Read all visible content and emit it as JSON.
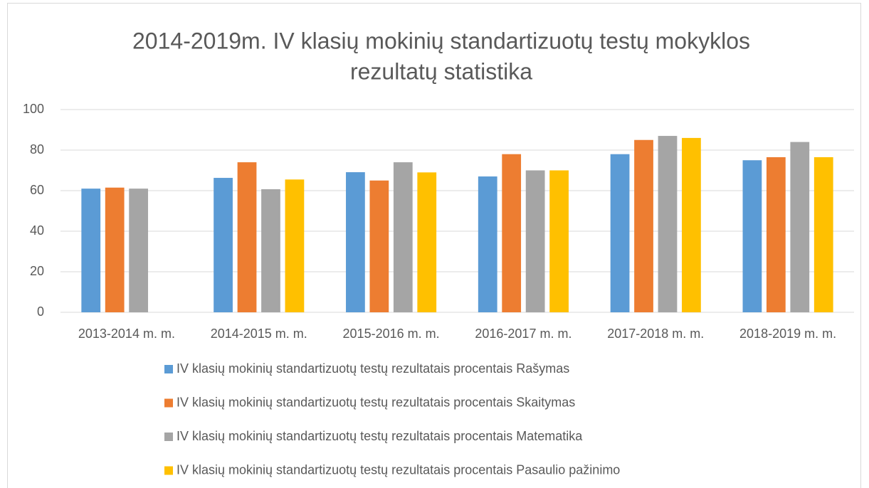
{
  "chart_data": {
    "type": "bar",
    "title": [
      "2014-2019m. IV klasių mokinių standartizuotų testų mokyklos",
      "rezultatų statistika"
    ],
    "categories": [
      "2013-2014 m. m.",
      "2014-2015 m. m.",
      "2015-2016 m. m.",
      "2016-2017 m. m.",
      "2017-2018 m. m.",
      "2018-2019 m. m."
    ],
    "series": [
      {
        "name": "IV klasių mokinių standartizuotų testų rezultatais procentais Rašymas",
        "color": "#5b9bd5",
        "values": [
          61,
          66.3,
          69.1,
          67,
          78,
          75
        ]
      },
      {
        "name": "IV klasių mokinių standartizuotų testų rezultatais procentais Skaitymas",
        "color": "#ed7d31",
        "values": [
          61.5,
          74,
          65,
          78,
          85,
          76.5
        ]
      },
      {
        "name": "IV klasių mokinių standartizuotų testų rezultatais procentais Matematika",
        "color": "#a5a5a5",
        "values": [
          61,
          60.7,
          74,
          70,
          87,
          84
        ]
      },
      {
        "name": "IV klasių mokinių standartizuotų testų rezultatais procentais Pasaulio pažinimo",
        "color": "#ffc000",
        "values": [
          null,
          65.5,
          69,
          70,
          86,
          76.5
        ]
      }
    ],
    "ylim": [
      0,
      100
    ],
    "yticks": [
      0,
      20,
      40,
      60,
      80,
      100
    ],
    "grid": true,
    "legend": "bottom"
  }
}
